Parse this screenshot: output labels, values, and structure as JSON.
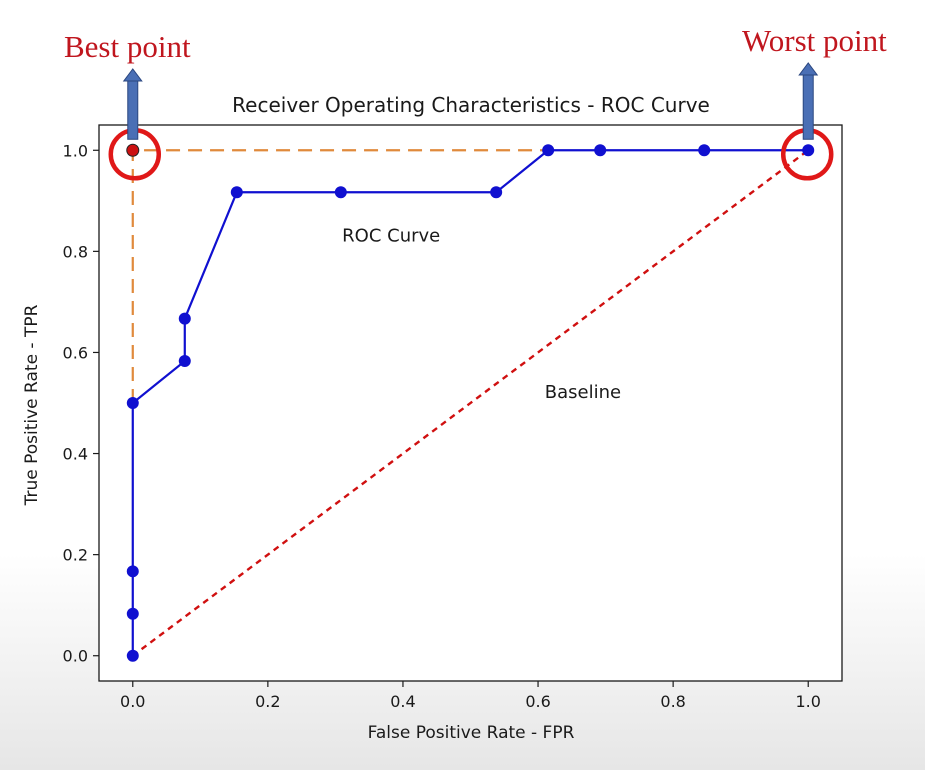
{
  "chart_data": {
    "type": "line",
    "title": "Receiver Operating Characteristics - ROC Curve",
    "xlabel": "False Positive Rate - FPR",
    "ylabel": "True Positive Rate - TPR",
    "xlim": [
      -0.05,
      1.05
    ],
    "ylim": [
      -0.05,
      1.05
    ],
    "x_ticks": [
      0.0,
      0.2,
      0.4,
      0.6,
      0.8,
      1.0
    ],
    "y_ticks": [
      0.0,
      0.2,
      0.4,
      0.6,
      0.8,
      1.0
    ],
    "x_tick_labels": [
      "0.0",
      "0.2",
      "0.4",
      "0.6",
      "0.8",
      "1.0"
    ],
    "y_tick_labels": [
      "0.0",
      "0.2",
      "0.4",
      "0.6",
      "0.8",
      "1.0"
    ],
    "grid": false,
    "series": [
      {
        "name": "ROC Curve",
        "style": "solid-markers",
        "color": "#1010d0",
        "x": [
          0.0,
          0.0,
          0.0,
          0.0,
          0.077,
          0.077,
          0.154,
          0.308,
          0.538,
          0.615,
          0.692,
          0.846,
          1.0
        ],
        "y": [
          0.0,
          0.083,
          0.167,
          0.5,
          0.583,
          0.667,
          0.917,
          0.917,
          0.917,
          1.0,
          1.0,
          1.0,
          1.0
        ]
      },
      {
        "name": "Baseline",
        "style": "dotted",
        "color": "#d01010",
        "x": [
          0.0,
          1.0
        ],
        "y": [
          0.0,
          1.0
        ]
      }
    ],
    "reference_lines": {
      "color": "#e08a3c",
      "style": "dashed",
      "x": [
        0.0,
        0.0,
        0.615
      ],
      "y": [
        0.5,
        1.0,
        1.0
      ]
    },
    "annotations": {
      "roc_label": {
        "text": "ROC Curve",
        "x": 0.31,
        "y": 0.82
      },
      "baseline_label": {
        "text": "Baseline",
        "x": 0.61,
        "y": 0.51
      },
      "best_point": {
        "text": "Best point",
        "x": 0.0,
        "y": 1.0,
        "marker_color": "#cc1111",
        "circle_color": "#e01818"
      },
      "worst_point": {
        "text": "Worst point",
        "x": 1.0,
        "y": 1.0,
        "circle_color": "#e01818"
      },
      "arrow_color": "#4a6fb5",
      "label_color": "#c0161e"
    }
  }
}
